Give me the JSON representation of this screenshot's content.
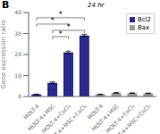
{
  "chart_data": {
    "type": "bar",
    "categories": [
      "MOLT-4",
      "MOLT-4+MSC",
      "MOLT-4+CoCl₂",
      "MOLT-4+MSC+CoCl₂",
      "MOLT-4",
      "MOLT-4+MSC",
      "MOLT-4+CoCl₂",
      "MOLT-4+MSC+CoCl₂"
    ],
    "series": [
      {
        "name": "Bcl2",
        "color": "#2b2b8c",
        "values": [
          1.0,
          6.5,
          21.0,
          29.0,
          null,
          null,
          null,
          null
        ],
        "errors": [
          0.1,
          0.4,
          0.6,
          0.5,
          null,
          null,
          null,
          null
        ]
      },
      {
        "name": "Bax",
        "color": "#9a9a9a",
        "values": [
          null,
          null,
          null,
          null,
          1.0,
          1.7,
          1.6,
          1.5
        ],
        "errors": [
          null,
          null,
          null,
          null,
          0.1,
          0.15,
          0.12,
          0.12
        ]
      }
    ],
    "ylabel": "Gene expression ratio",
    "annotations": [
      "B",
      "24 hr"
    ],
    "ylim": [
      0,
      40
    ],
    "yticks": [
      0,
      10,
      20,
      30,
      40
    ],
    "legend": "upper right",
    "grid": false,
    "significance": [
      {
        "from": 0,
        "to": 3,
        "y": 37.5,
        "label": "*"
      },
      {
        "from": 0,
        "to": 2,
        "y": 34.5,
        "label": "*"
      },
      {
        "from": 1,
        "to": 3,
        "y": 31.5,
        "label": "*"
      },
      {
        "from": 1,
        "to": 2,
        "y": 28.5,
        "label": "*"
      }
    ]
  }
}
